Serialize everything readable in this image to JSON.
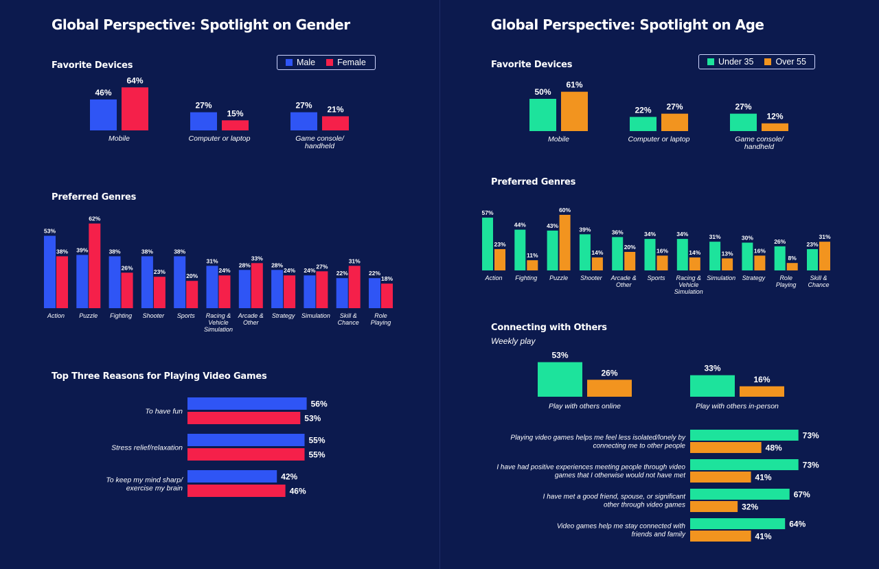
{
  "colors": {
    "background": "#0c1a4e",
    "male": "#2f55f5",
    "female": "#f5204a",
    "under35": "#1de39c",
    "over55": "#f2941f"
  },
  "left": {
    "title": "Global Perspective: Spotlight on Gender",
    "devices_heading": "Favorite Devices",
    "genres_heading": "Preferred Genres",
    "reasons_heading": "Top Three Reasons for Playing Video Games",
    "legend": [
      "Male",
      "Female"
    ]
  },
  "right": {
    "title": "Global Perspective: Spotlight on Age",
    "devices_heading": "Favorite Devices",
    "genres_heading": "Preferred Genres",
    "connect_heading": "Connecting with Others",
    "connect_sub": "Weekly play",
    "legend": [
      "Under 35",
      "Over 55"
    ]
  },
  "chart_data": [
    {
      "id": "gender_devices",
      "type": "bar",
      "categories": [
        "Mobile",
        "Computer or laptop",
        "Game console/\nhandheld"
      ],
      "series": [
        {
          "name": "Male",
          "values": [
            46,
            27,
            27
          ]
        },
        {
          "name": "Female",
          "values": [
            64,
            15,
            21
          ]
        }
      ],
      "unit": "%"
    },
    {
      "id": "gender_genres",
      "type": "bar",
      "categories": [
        "Action",
        "Puzzle",
        "Fighting",
        "Shooter",
        "Sports",
        "Racing &\nVehicle\nSimulation",
        "Arcade &\nOther",
        "Strategy",
        "Simulation",
        "Skill &\nChance",
        "Role\nPlaying"
      ],
      "series": [
        {
          "name": "Male",
          "values": [
            53,
            39,
            38,
            38,
            38,
            31,
            28,
            28,
            24,
            22,
            22
          ]
        },
        {
          "name": "Female",
          "values": [
            38,
            62,
            26,
            23,
            20,
            24,
            33,
            24,
            27,
            31,
            18
          ]
        }
      ],
      "unit": "%"
    },
    {
      "id": "gender_reasons",
      "type": "bar",
      "orientation": "horizontal",
      "categories": [
        "To have fun",
        "Stress relief/relaxation",
        "To keep my mind sharp/\nexercise my brain"
      ],
      "series": [
        {
          "name": "Male",
          "values": [
            56,
            55,
            42
          ]
        },
        {
          "name": "Female",
          "values": [
            53,
            55,
            46
          ]
        }
      ],
      "unit": "%"
    },
    {
      "id": "age_devices",
      "type": "bar",
      "categories": [
        "Mobile",
        "Computer or laptop",
        "Game console/\nhandheld"
      ],
      "series": [
        {
          "name": "Under 35",
          "values": [
            50,
            22,
            27
          ]
        },
        {
          "name": "Over 55",
          "values": [
            61,
            27,
            12
          ]
        }
      ],
      "unit": "%"
    },
    {
      "id": "age_genres",
      "type": "bar",
      "categories": [
        "Action",
        "Fighting",
        "Puzzle",
        "Shooter",
        "Arcade &\nOther",
        "Sports",
        "Racing &\nVehicle\nSimulation",
        "Simulation",
        "Strategy",
        "Role\nPlaying",
        "Skill &\nChance"
      ],
      "series": [
        {
          "name": "Under 35",
          "values": [
            57,
            44,
            43,
            39,
            36,
            34,
            34,
            31,
            30,
            26,
            23
          ]
        },
        {
          "name": "Over 55",
          "values": [
            23,
            11,
            60,
            14,
            20,
            16,
            14,
            13,
            16,
            8,
            31
          ]
        }
      ],
      "unit": "%"
    },
    {
      "id": "age_connect",
      "type": "bar",
      "categories": [
        "Play with others online",
        "Play with others in-person"
      ],
      "series": [
        {
          "name": "Under 35",
          "values": [
            53,
            33
          ]
        },
        {
          "name": "Over 55",
          "values": [
            26,
            16
          ]
        }
      ],
      "unit": "%"
    },
    {
      "id": "age_statements",
      "type": "bar",
      "orientation": "horizontal",
      "categories": [
        "Playing video games helps me feel less isolated/lonely by\nconnecting me to other people",
        "I have had positive experiences meeting people through video\ngames that I otherwise would not have met",
        "I have met a good friend, spouse, or significant\nother through video games",
        "Video games help me stay connected with\nfriends and family"
      ],
      "series": [
        {
          "name": "Under 35",
          "values": [
            73,
            73,
            67,
            64
          ]
        },
        {
          "name": "Over 55",
          "values": [
            48,
            41,
            32,
            41
          ]
        }
      ],
      "unit": "%"
    }
  ]
}
